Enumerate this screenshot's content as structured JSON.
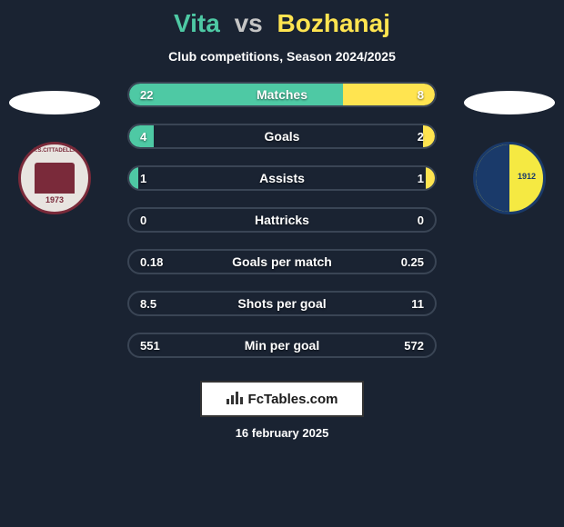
{
  "header": {
    "player1": "Vita",
    "vs": "vs",
    "player2": "Bozhanaj",
    "player1_color": "#4ec9a4",
    "player2_color": "#ffe450",
    "subtitle": "Club competitions, Season 2024/2025"
  },
  "clubs": {
    "left": {
      "year": "1973",
      "top_text": "A.S.CITTADELLA",
      "ring_color": "#7a2a3a",
      "bg_color": "#e8e4e0"
    },
    "right": {
      "year": "1912",
      "ring_color": "#1a3a6a",
      "bg_color": "#f5e942"
    }
  },
  "stats": {
    "left_fill_color": "#4ec9a4",
    "right_fill_color": "#ffe450",
    "row_bg_color": "#1a2332",
    "row_border_color": "#3a4555",
    "rows": [
      {
        "label": "Matches",
        "left_value": "22",
        "right_value": "8",
        "left_pct": 70,
        "right_pct": 30
      },
      {
        "label": "Goals",
        "left_value": "4",
        "right_value": "2",
        "left_pct": 8,
        "right_pct": 4
      },
      {
        "label": "Assists",
        "left_value": "1",
        "right_value": "1",
        "left_pct": 3,
        "right_pct": 3
      },
      {
        "label": "Hattricks",
        "left_value": "0",
        "right_value": "0",
        "left_pct": 0,
        "right_pct": 0
      },
      {
        "label": "Goals per match",
        "left_value": "0.18",
        "right_value": "0.25",
        "left_pct": 0,
        "right_pct": 0
      },
      {
        "label": "Shots per goal",
        "left_value": "8.5",
        "right_value": "11",
        "left_pct": 0,
        "right_pct": 0
      },
      {
        "label": "Min per goal",
        "left_value": "551",
        "right_value": "572",
        "left_pct": 0,
        "right_pct": 0
      }
    ]
  },
  "footer": {
    "brand": "FcTables.com",
    "date": "16 february 2025"
  }
}
